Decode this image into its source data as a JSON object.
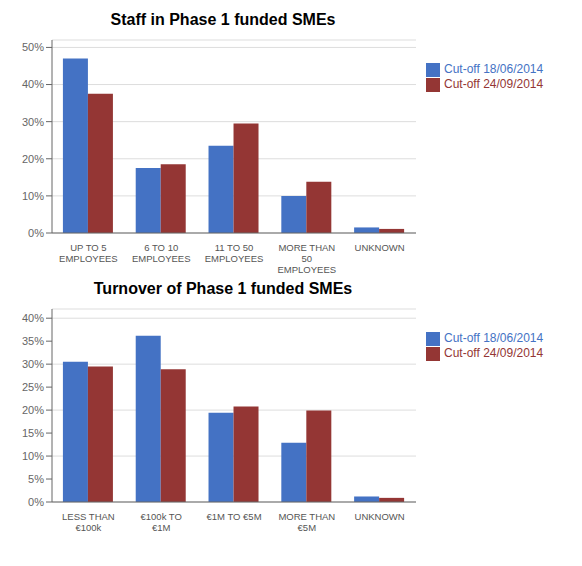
{
  "chart_data": [
    {
      "type": "bar",
      "title": "Staff in Phase 1 funded SMEs",
      "categories": [
        "UP TO 5\nEMPLOYEES",
        "6 TO 10\nEMPLOYEES",
        "11 TO 50\nEMPLOYEES",
        "MORE THAN\n50\nEMPLOYEES",
        "UNKNOWN"
      ],
      "series": [
        {
          "name": "Cut-off 18/06/2014",
          "color": "#4472C4",
          "values": [
            0.47,
            0.175,
            0.235,
            0.1,
            0.015
          ]
        },
        {
          "name": "Cut-off 24/09/2014",
          "color": "#943634",
          "values": [
            0.375,
            0.185,
            0.295,
            0.138,
            0.011
          ]
        }
      ],
      "ylim": [
        0,
        0.52
      ],
      "yticks": [
        {
          "value": 0.0,
          "label": "0%"
        },
        {
          "value": 0.1,
          "label": "10%"
        },
        {
          "value": 0.2,
          "label": "20%"
        },
        {
          "value": 0.3,
          "label": "30%"
        },
        {
          "value": 0.4,
          "label": "40%"
        },
        {
          "value": 0.5,
          "label": "50%"
        }
      ],
      "grid": true,
      "legend": "right"
    },
    {
      "type": "bar",
      "title": "Turnover of Phase 1 funded SMEs",
      "categories": [
        "LESS THAN\n€100k",
        "€100k TO\n€1M",
        "€1M TO €5M",
        "MORE THAN\n€5M",
        "UNKNOWN"
      ],
      "series": [
        {
          "name": "Cut-off 18/06/2014",
          "color": "#4472C4",
          "values": [
            0.305,
            0.362,
            0.194,
            0.129,
            0.012
          ]
        },
        {
          "name": "Cut-off 24/09/2014",
          "color": "#943634",
          "values": [
            0.295,
            0.289,
            0.208,
            0.199,
            0.009
          ]
        }
      ],
      "ylim": [
        0,
        0.42
      ],
      "yticks": [
        {
          "value": 0.0,
          "label": "0%"
        },
        {
          "value": 0.05,
          "label": "5%"
        },
        {
          "value": 0.1,
          "label": "10%"
        },
        {
          "value": 0.15,
          "label": "15%"
        },
        {
          "value": 0.2,
          "label": "20%"
        },
        {
          "value": 0.25,
          "label": "25%"
        },
        {
          "value": 0.3,
          "label": "30%"
        },
        {
          "value": 0.35,
          "label": "35%"
        },
        {
          "value": 0.4,
          "label": "40%"
        }
      ],
      "grid": true,
      "legend": "right"
    }
  ]
}
